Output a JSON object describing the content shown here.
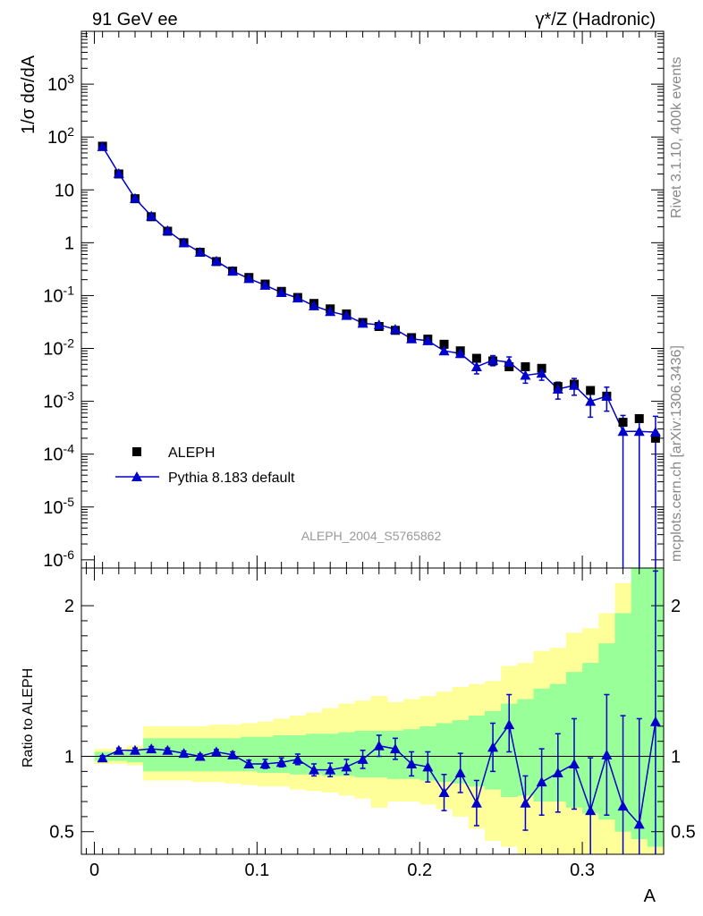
{
  "header": {
    "energy_label": "91 GeV ee",
    "process_label": "γ*/Z (Hadronic)"
  },
  "side_labels": {
    "rivet": "Rivet 3.1.10,  400k events",
    "mcplots": "mcplots.cern.ch [arXiv:1306.3436]"
  },
  "analysis_tag": "ALEPH_2004_S5765862",
  "chart_data": [
    {
      "type": "scatter",
      "title": "",
      "xlabel": "A",
      "ylabel": "1/σ  dσ/dA",
      "ylog": true,
      "xlim": [
        -0.008,
        0.35
      ],
      "ylim": [
        7e-07,
        10000.0
      ],
      "grid": false,
      "legend_position": "bottom-left",
      "x_ticks": [
        "0",
        "0.1",
        "0.2",
        "0.3"
      ],
      "y_ticks": [
        "10^-6",
        "10^-5",
        "10^-4",
        "10^-3",
        "10^-2",
        "10^-1",
        "1",
        "10",
        "10^2",
        "10^3"
      ],
      "x": [
        0.005,
        0.015,
        0.025,
        0.035,
        0.045,
        0.055,
        0.065,
        0.075,
        0.085,
        0.095,
        0.105,
        0.115,
        0.125,
        0.135,
        0.145,
        0.155,
        0.165,
        0.175,
        0.185,
        0.195,
        0.205,
        0.215,
        0.225,
        0.235,
        0.245,
        0.255,
        0.265,
        0.275,
        0.285,
        0.295,
        0.305,
        0.315,
        0.325,
        0.335,
        0.345
      ],
      "series": [
        {
          "name": "ALEPH",
          "marker": "square",
          "color": "#000000",
          "values": [
            67,
            20,
            6.8,
            3.1,
            1.65,
            1.0,
            0.66,
            0.44,
            0.29,
            0.22,
            0.165,
            0.12,
            0.092,
            0.071,
            0.056,
            0.045,
            0.031,
            0.026,
            0.022,
            0.016,
            0.015,
            0.012,
            0.009,
            0.0065,
            0.0058,
            0.0045,
            0.0045,
            0.0042,
            0.0019,
            0.0021,
            0.0016,
            0.00125,
            0.0004,
            0.00047,
            0.0002
          ]
        },
        {
          "name": "Pythia 8.183 default",
          "marker": "triangle",
          "color": "#0000cc",
          "values": [
            66,
            20.5,
            6.9,
            3.2,
            1.7,
            1.0,
            0.66,
            0.45,
            0.29,
            0.21,
            0.157,
            0.114,
            0.09,
            0.064,
            0.05,
            0.042,
            0.03,
            0.028,
            0.023,
            0.0152,
            0.014,
            0.009,
            0.008,
            0.0045,
            0.006,
            0.0055,
            0.0031,
            0.0034,
            0.0017,
            0.002,
            0.001,
            0.00125,
            0.00027,
            0.00027,
            0.00026
          ],
          "err_low": [
            2,
            0.6,
            0.2,
            0.1,
            0.05,
            0.03,
            0.02,
            0.015,
            0.01,
            0.008,
            0.006,
            0.005,
            0.004,
            0.004,
            0.003,
            0.003,
            0.002,
            0.002,
            0.002,
            0.0015,
            0.0015,
            0.0012,
            0.0012,
            0.0012,
            0.0013,
            0.0014,
            0.0009,
            0.0009,
            0.0006,
            0.0007,
            0.0005,
            0.0006,
            0.00027,
            0.00027,
            0.00026
          ],
          "err_high": [
            2,
            0.6,
            0.2,
            0.1,
            0.05,
            0.03,
            0.02,
            0.015,
            0.01,
            0.008,
            0.006,
            0.005,
            0.004,
            0.004,
            0.003,
            0.003,
            0.002,
            0.002,
            0.002,
            0.0015,
            0.0015,
            0.0012,
            0.0012,
            0.0012,
            0.0013,
            0.0014,
            0.0009,
            0.0009,
            0.0006,
            0.0007,
            0.0006,
            0.0006,
            0.00027,
            0.00027,
            0.00026
          ]
        }
      ]
    },
    {
      "type": "line",
      "title": "",
      "xlabel": "A",
      "ylabel": "Ratio to ALEPH",
      "xlim": [
        -0.008,
        0.35
      ],
      "ylim": [
        0.35,
        2.25
      ],
      "y_ticks": [
        "0.5",
        "1",
        "2"
      ],
      "reference_line": 1.0,
      "x": [
        0.005,
        0.015,
        0.025,
        0.035,
        0.045,
        0.055,
        0.065,
        0.075,
        0.085,
        0.095,
        0.105,
        0.115,
        0.125,
        0.135,
        0.145,
        0.155,
        0.165,
        0.175,
        0.185,
        0.195,
        0.205,
        0.215,
        0.225,
        0.235,
        0.245,
        0.255,
        0.265,
        0.275,
        0.285,
        0.295,
        0.305,
        0.315,
        0.325,
        0.335,
        0.345
      ],
      "bands": {
        "color_inner": "#99ff99",
        "color_outer": "#ffff99",
        "inner_low": [
          0.97,
          0.97,
          0.96,
          0.9,
          0.9,
          0.9,
          0.9,
          0.9,
          0.9,
          0.9,
          0.89,
          0.89,
          0.88,
          0.88,
          0.87,
          0.87,
          0.86,
          0.86,
          0.85,
          0.85,
          0.84,
          0.83,
          0.82,
          0.8,
          0.78,
          0.73,
          0.74,
          0.7,
          0.7,
          0.66,
          0.62,
          0.58,
          0.5,
          0.45,
          0.4
        ],
        "inner_high": [
          1.03,
          1.03,
          1.04,
          1.12,
          1.12,
          1.12,
          1.12,
          1.12,
          1.12,
          1.13,
          1.13,
          1.14,
          1.14,
          1.15,
          1.15,
          1.16,
          1.17,
          1.17,
          1.17,
          1.18,
          1.2,
          1.22,
          1.24,
          1.27,
          1.3,
          1.35,
          1.38,
          1.45,
          1.48,
          1.56,
          1.62,
          1.75,
          1.95,
          2.25,
          2.25
        ],
        "outer_low": [
          0.95,
          0.95,
          0.94,
          0.84,
          0.84,
          0.84,
          0.83,
          0.83,
          0.82,
          0.81,
          0.8,
          0.8,
          0.78,
          0.77,
          0.76,
          0.74,
          0.72,
          0.66,
          0.7,
          0.7,
          0.68,
          0.65,
          0.6,
          0.52,
          0.44,
          0.4,
          0.35,
          0.35,
          0.35,
          0.35,
          0.35,
          0.35,
          0.35,
          0.35,
          0.35
        ],
        "outer_high": [
          1.05,
          1.05,
          1.07,
          1.2,
          1.2,
          1.2,
          1.2,
          1.21,
          1.21,
          1.22,
          1.23,
          1.25,
          1.27,
          1.29,
          1.32,
          1.35,
          1.37,
          1.4,
          1.36,
          1.38,
          1.4,
          1.43,
          1.46,
          1.48,
          1.5,
          1.6,
          1.62,
          1.7,
          1.72,
          1.82,
          1.85,
          1.95,
          2.15,
          2.25,
          2.25
        ]
      },
      "series": [
        {
          "name": "Pythia 8.183 default",
          "color": "#0000cc",
          "values": [
            0.99,
            1.04,
            1.04,
            1.05,
            1.04,
            1.02,
            1.0,
            1.03,
            1.01,
            0.95,
            0.95,
            0.96,
            0.98,
            0.91,
            0.91,
            0.93,
            0.98,
            1.07,
            1.05,
            0.95,
            0.93,
            0.76,
            0.89,
            0.69,
            1.06,
            1.21,
            0.69,
            0.83,
            0.89,
            0.95,
            0.64,
            1.01,
            0.67,
            0.55,
            1.23
          ],
          "err_low": [
            0.015,
            0.015,
            0.015,
            0.015,
            0.015,
            0.015,
            0.015,
            0.015,
            0.02,
            0.025,
            0.03,
            0.03,
            0.035,
            0.04,
            0.045,
            0.05,
            0.06,
            0.07,
            0.07,
            0.08,
            0.1,
            0.12,
            0.13,
            0.15,
            0.16,
            0.18,
            0.18,
            0.22,
            0.26,
            0.3,
            0.35,
            0.4,
            0.4,
            0.4,
            0.9
          ],
          "err_high": [
            0.015,
            0.015,
            0.015,
            0.015,
            0.015,
            0.015,
            0.015,
            0.015,
            0.02,
            0.025,
            0.03,
            0.03,
            0.035,
            0.04,
            0.045,
            0.05,
            0.06,
            0.07,
            0.07,
            0.08,
            0.1,
            0.12,
            0.13,
            0.15,
            0.16,
            0.2,
            0.18,
            0.22,
            0.26,
            0.3,
            0.35,
            0.4,
            0.6,
            0.7,
            1.0
          ]
        }
      ]
    }
  ]
}
